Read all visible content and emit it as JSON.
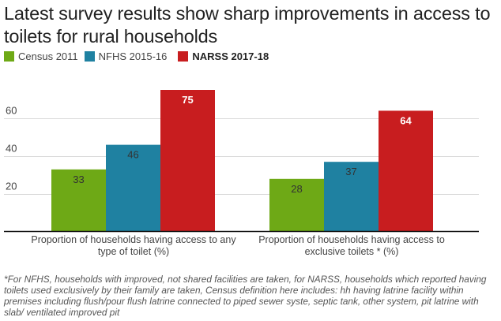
{
  "title": "Latest survey results show sharp improvements in access to toilets for rural households",
  "legend": [
    {
      "label": "Census 2011",
      "color": "#6ea916",
      "bold": false
    },
    {
      "label": "NFHS 2015-16",
      "color": "#1f81a1",
      "bold": false
    },
    {
      "label": "NARSS 2017-18",
      "color": "#c81d1f",
      "bold": true
    }
  ],
  "note": "*For NFHS, households with improved, not shared facilities are taken, for NARSS, households which reported having toilets used exclusively by their family are taken, Census definition here includes: hh having latrine facility within premises including flush/pour flush latrine connected to piped sewer syste, septic tank, other system, pit latrine with slab/ ventilated improved pit",
  "chart_data": {
    "type": "bar",
    "title": "Latest survey results show sharp improvements in access to toilets for rural households",
    "xlabel": "",
    "ylabel": "",
    "categories": [
      "Proportion of households having access to any type of toilet (%)",
      "Proportion of households having access to exclusive toilets * (%)"
    ],
    "series": [
      {
        "name": "Census 2011",
        "color": "#6ea916",
        "values": [
          33,
          28
        ],
        "label_color": "#333333"
      },
      {
        "name": "NFHS 2015-16",
        "color": "#1f81a1",
        "values": [
          46,
          37
        ],
        "label_color": "#333333"
      },
      {
        "name": "NARSS 2017-18",
        "color": "#c81d1f",
        "values": [
          75,
          64
        ],
        "label_color": "#ffffff"
      }
    ],
    "yticks": [
      20,
      40,
      60
    ],
    "ylim": [
      0,
      75
    ],
    "grid": true,
    "legend_position": "top-left"
  }
}
